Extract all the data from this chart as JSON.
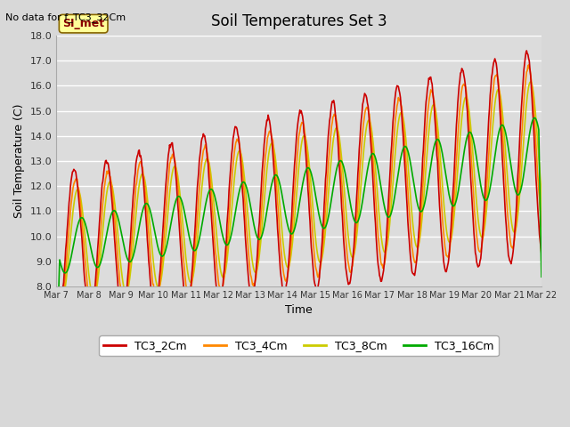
{
  "title": "Soil Temperatures Set 3",
  "top_left_note": "No data for f_TC3_32Cm",
  "ylabel": "Soil Temperature (C)",
  "xlabel": "Time",
  "ylim": [
    8.0,
    18.0
  ],
  "yticks": [
    8.0,
    9.0,
    10.0,
    11.0,
    12.0,
    13.0,
    14.0,
    15.0,
    16.0,
    17.0,
    18.0
  ],
  "xtick_labels": [
    "Mar 7",
    "Mar 8",
    "Mar 9",
    "Mar 10",
    "Mar 11",
    "Mar 12",
    "Mar 13",
    "Mar 14",
    "Mar 15",
    "Mar 16",
    "Mar 17",
    "Mar 18",
    "Mar 19",
    "Mar 20",
    "Mar 21",
    "Mar 22"
  ],
  "background_color": "#d8d8d8",
  "plot_bg_color": "#d8d8d8",
  "legend_entries": [
    "TC3_2Cm",
    "TC3_4Cm",
    "TC3_8Cm",
    "TC3_16Cm"
  ],
  "line_colors": [
    "#cc0000",
    "#ff8800",
    "#cccc00",
    "#00aa00"
  ],
  "annotation_text": "SI_met",
  "annotation_color": "#880000",
  "annotation_bg": "#ffff99",
  "n_days": 15,
  "samples_per_day": 48
}
